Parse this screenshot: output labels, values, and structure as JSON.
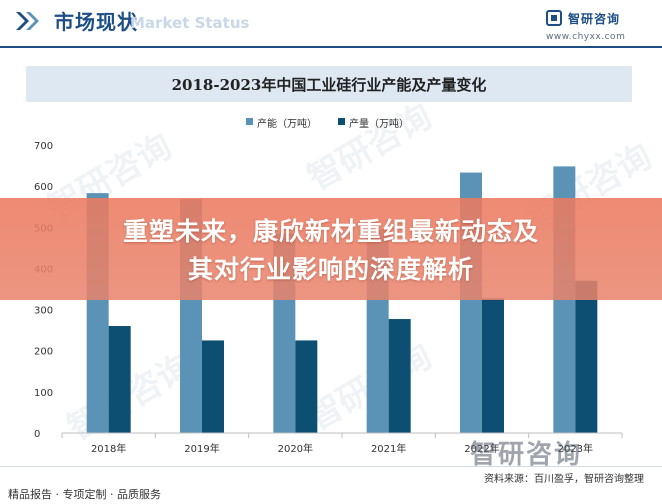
{
  "header": {
    "title": "市场现状",
    "ghost_text": "Market Status",
    "brand_name": "智研咨询",
    "brand_url": "www.chyxx.com"
  },
  "colors": {
    "primary": "#1d4f86",
    "capacity": "#5b93b6",
    "output": "#0d4f73",
    "title_band": "#dde8f2",
    "banner": "#ec7a60"
  },
  "chart_data": {
    "type": "bar",
    "title": "2018-2023年中国工业硅行业产能及产量变化",
    "categories": [
      "2018年",
      "2019年",
      "2020年",
      "2021年",
      "2022年",
      "2023年"
    ],
    "series": [
      {
        "name": "产能（万吨）",
        "values": [
          583,
          568,
          485,
          495,
          633,
          648
        ]
      },
      {
        "name": "产量（万吨）",
        "values": [
          260,
          225,
          225,
          277,
          327,
          370
        ]
      }
    ],
    "ylim": [
      0,
      700
    ],
    "yticks": [
      0,
      100,
      200,
      300,
      400,
      500,
      600,
      700
    ],
    "grid": false,
    "legend": "top-center"
  },
  "banner": {
    "line1": "重塑未来，康欣新材重组最新动态及",
    "line2": "其对行业影响的深度解析"
  },
  "footer": {
    "source": "资料来源：百川盈孚，智研咨询整理",
    "services": "精品报告 · 专项定制 · 品质服务",
    "watermark": "智研咨询"
  }
}
